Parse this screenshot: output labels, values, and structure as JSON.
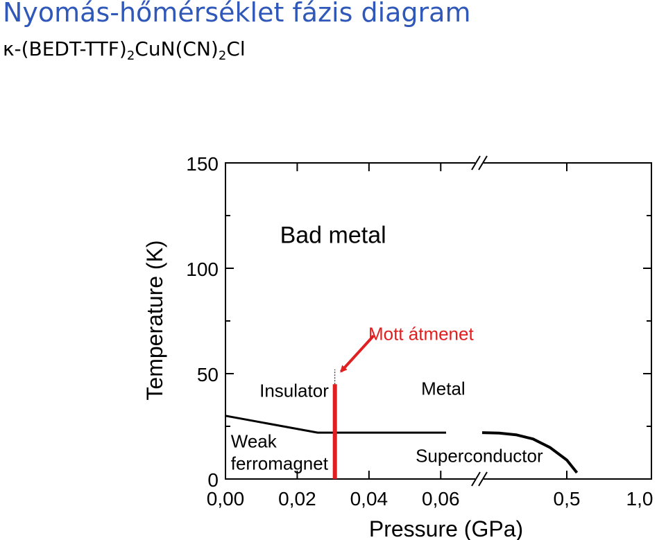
{
  "header": {
    "title": "Nyomás-hőmérséklet fázis diagram",
    "subtitle_parts": [
      "κ-(BEDT-TTF)",
      "2",
      "CuN(CN)",
      "2",
      "Cl"
    ]
  },
  "chart_data": {
    "type": "line",
    "title": "",
    "xlabel": "Pressure (GPa)",
    "ylabel": "Temperature (K)",
    "ylim": [
      0,
      150
    ],
    "x_segments": [
      {
        "range": [
          0.0,
          0.07
        ],
        "tick_values": [
          0.0,
          0.02,
          0.04,
          0.06
        ]
      },
      {
        "range": [
          0.0,
          1.0
        ],
        "tick_values": [
          0.5,
          1.0
        ]
      }
    ],
    "x_tick_labels": [
      "0,00",
      "0,02",
      "0,04",
      "0,06",
      "0,5",
      "1,0"
    ],
    "y_tick_values": [
      0,
      50,
      100,
      150
    ],
    "y_tick_labels": [
      "0",
      "50",
      "100",
      "150"
    ],
    "axis_break": "between 0,06 and 0,5",
    "grid": false,
    "regions": [
      {
        "label": "Bad metal",
        "x": 0.03,
        "y": 112
      },
      {
        "label": "Insulator",
        "x": 0.0095,
        "y": 39
      },
      {
        "label": "Metal",
        "x": 0.0607,
        "y": 40
      },
      {
        "label_lines": [
          "Weak",
          "ferromagnet"
        ],
        "x": 0.0015,
        "y": 15
      },
      {
        "label": "Superconductor",
        "x": 0.053,
        "y": 8
      }
    ],
    "series": [
      {
        "role": "insulator-boundary",
        "segment": 0,
        "color": "#000000",
        "points": [
          [
            0.0,
            30
          ],
          [
            0.0257,
            22
          ],
          [
            0.0615,
            22
          ]
        ]
      },
      {
        "role": "superconducting-dome",
        "segment": 1,
        "color": "#000000",
        "points": [
          [
            0.0,
            22
          ],
          [
            0.1,
            21.8
          ],
          [
            0.2,
            21
          ],
          [
            0.3,
            19
          ],
          [
            0.4,
            15
          ],
          [
            0.5,
            9
          ],
          [
            0.56,
            3
          ]
        ]
      },
      {
        "role": "mott-transition",
        "segment": 0,
        "color": "#e02020",
        "points": [
          [
            0.0305,
            0
          ],
          [
            0.0305,
            45
          ]
        ]
      },
      {
        "role": "mott-transition-extension",
        "segment": 0,
        "color": "#000000",
        "style": "dotted",
        "points": [
          [
            0.0305,
            45
          ],
          [
            0.0305,
            52
          ]
        ]
      }
    ],
    "annotations": [
      {
        "label": "Mott átmenet",
        "color": "#e02020",
        "text_x": 0.0545,
        "text_y": 66,
        "arrow_from": [
          0.0413,
          68
        ],
        "arrow_to": [
          0.0322,
          51
        ]
      }
    ]
  }
}
